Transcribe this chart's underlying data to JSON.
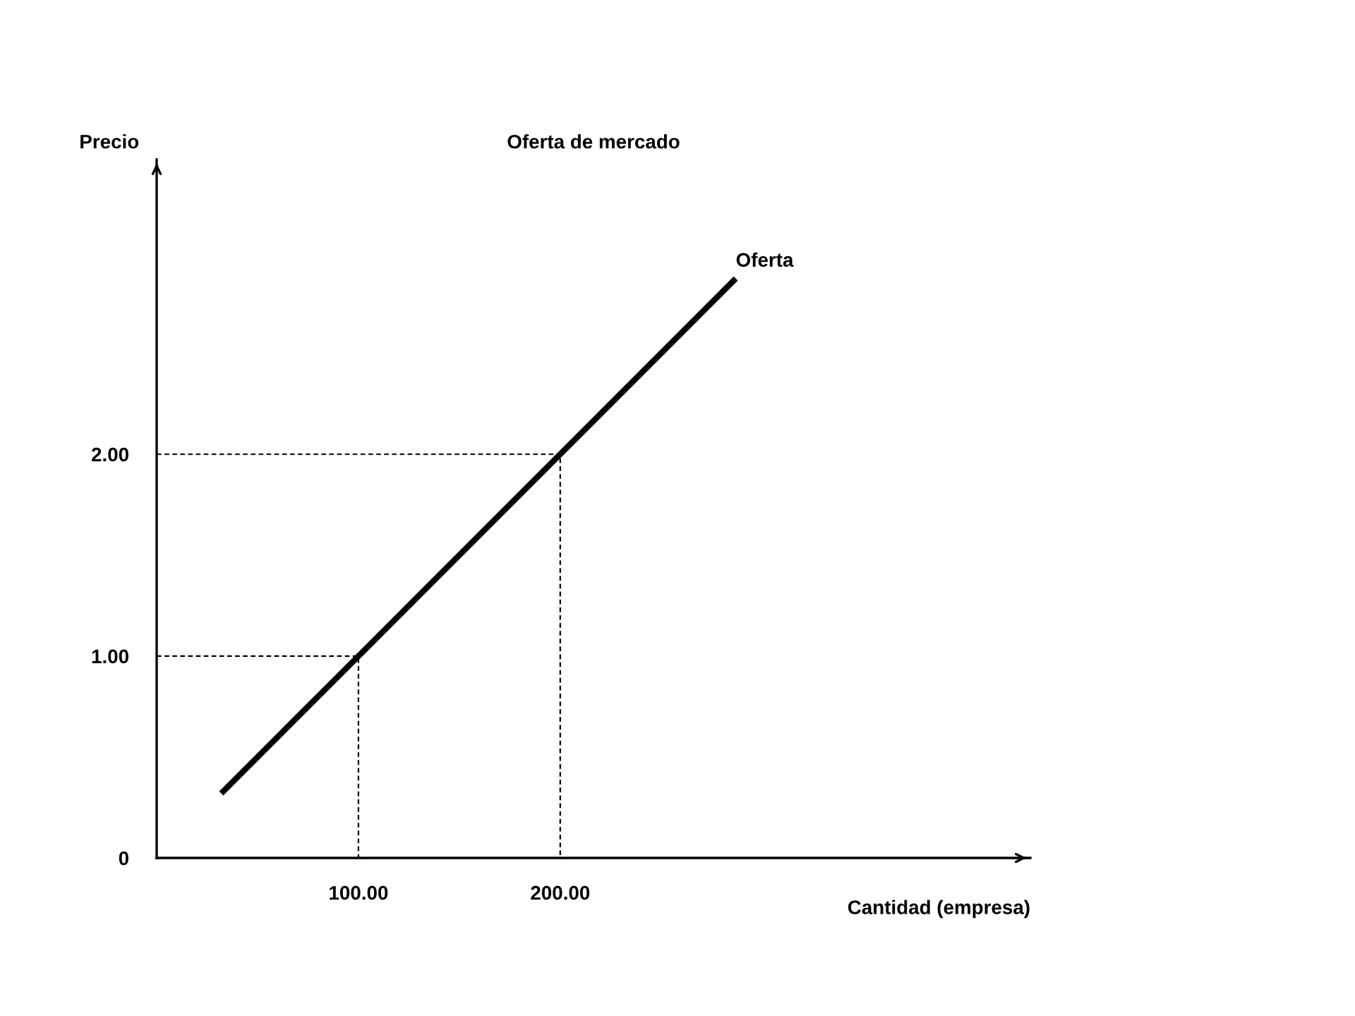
{
  "chart_data": {
    "type": "line",
    "title": "Oferta de mercado",
    "xlabel": "Cantidad (empresa)",
    "ylabel": "Precio",
    "series": [
      {
        "name": "Oferta",
        "color": "#000000",
        "x": [
          32,
          287
        ],
        "values": [
          0.32,
          2.87
        ]
      },
      {
        "color": "#000000",
        "x": [
          0,
          100,
          100
        ],
        "values": [
          1,
          1,
          0
        ],
        "line_style": "dashed"
      },
      {
        "color": "#000000",
        "x": [
          0,
          200,
          200
        ],
        "values": [
          2,
          2,
          0
        ],
        "line_style": "dashed"
      }
    ],
    "xlim": [
      0,
      433
    ],
    "ylim": [
      0,
      3.46
    ],
    "xticks": [
      {
        "value": 100,
        "label": "100.00"
      },
      {
        "value": 200,
        "label": "200.00"
      }
    ],
    "yticks": [
      {
        "value": 0,
        "label": "0"
      },
      {
        "value": 1,
        "label": "1.00"
      },
      {
        "value": 2,
        "label": "2.00"
      }
    ],
    "grid": false,
    "legend": false,
    "marker": "none",
    "line_style": "solid"
  }
}
